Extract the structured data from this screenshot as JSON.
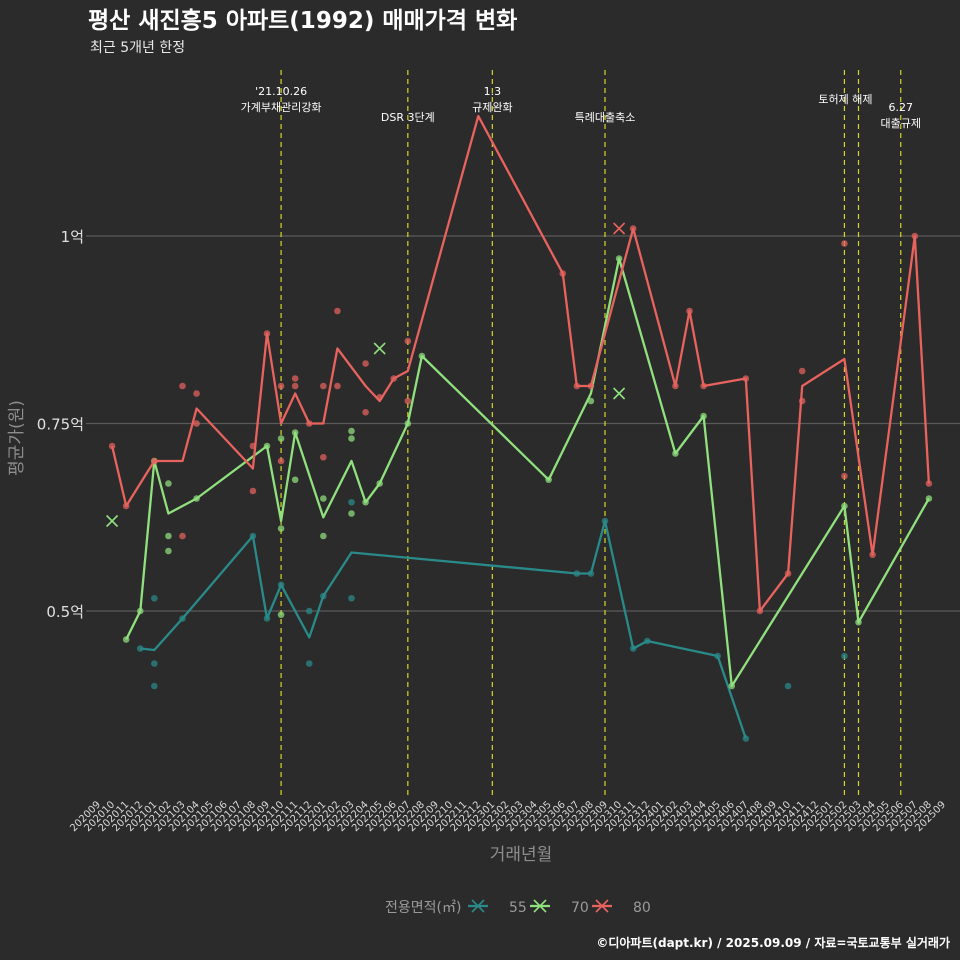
{
  "chart_data": {
    "type": "line",
    "title": "평산 새진흥5 아파트(1992) 매매가격 변화",
    "subtitle": "최근 5개년 한정",
    "xlabel": "거래년월",
    "ylabel": "평균가(원)",
    "caption": "©디아파트(dapt.kr) / 2025.09.09 / 자료=국토교통부 실거래가",
    "ylim": [
      0.3,
      1.17
    ],
    "yticks": [
      {
        "value": 0.5,
        "label": "0.5억"
      },
      {
        "value": 0.75,
        "label": "0.75억"
      },
      {
        "value": 1.0,
        "label": "1억"
      }
    ],
    "x_categories": [
      "202009",
      "202010",
      "202011",
      "202012",
      "202101",
      "202102",
      "202103",
      "202104",
      "202105",
      "202106",
      "202107",
      "202108",
      "202109",
      "202110",
      "202111",
      "202112",
      "202201",
      "202202",
      "202203",
      "202204",
      "202205",
      "202206",
      "202207",
      "202208",
      "202209",
      "202210",
      "202211",
      "202212",
      "202301",
      "202302",
      "202303",
      "202304",
      "202305",
      "202306",
      "202307",
      "202308",
      "202309",
      "202310",
      "202311",
      "202312",
      "202401",
      "202402",
      "202403",
      "202404",
      "202405",
      "202406",
      "202407",
      "202408",
      "202409",
      "202410",
      "202411",
      "202412",
      "202501",
      "202502",
      "202503",
      "202504",
      "202505",
      "202506",
      "202507",
      "202508",
      "202509"
    ],
    "legend": {
      "title": "전용면적(㎡)",
      "position": "bottom"
    },
    "series": [
      {
        "name": "55",
        "color": "#2a8a8a",
        "line": [
          [
            "202012",
            0.45
          ],
          [
            "202101",
            0.448
          ],
          [
            "202103",
            0.49
          ],
          [
            "202108",
            0.6
          ],
          [
            "202109",
            0.49
          ],
          [
            "202110",
            0.535
          ],
          [
            "202112",
            0.465
          ],
          [
            "202201",
            0.52
          ],
          [
            "202203",
            0.578
          ],
          [
            "202307",
            0.55
          ],
          [
            "202308",
            0.55
          ],
          [
            "202309",
            0.62
          ],
          [
            "202311",
            0.45
          ],
          [
            "202312",
            0.46
          ],
          [
            "202405",
            0.44
          ],
          [
            "202407",
            0.33
          ]
        ],
        "points": [
          [
            "202012",
            0.45
          ],
          [
            "202101",
            0.517
          ],
          [
            "202101",
            0.43
          ],
          [
            "202101",
            0.4
          ],
          [
            "202103",
            0.49
          ],
          [
            "202108",
            0.6
          ],
          [
            "202109",
            0.49
          ],
          [
            "202110",
            0.535
          ],
          [
            "202112",
            0.5
          ],
          [
            "202112",
            0.43
          ],
          [
            "202201",
            0.52
          ],
          [
            "202203",
            0.645
          ],
          [
            "202203",
            0.517
          ],
          [
            "202307",
            0.55
          ],
          [
            "202308",
            0.55
          ],
          [
            "202309",
            0.62
          ],
          [
            "202311",
            0.45
          ],
          [
            "202312",
            0.46
          ],
          [
            "202405",
            0.44
          ],
          [
            "202407",
            0.33
          ],
          [
            "202410",
            0.4
          ],
          [
            "202502",
            0.44
          ]
        ],
        "cancelled": []
      },
      {
        "name": "70",
        "color": "#90e07e",
        "line": [
          [
            "202011",
            0.462
          ],
          [
            "202012",
            0.5
          ],
          [
            "202101",
            0.7
          ],
          [
            "202102",
            0.63
          ],
          [
            "202104",
            0.65
          ],
          [
            "202109",
            0.72
          ],
          [
            "202110",
            0.62
          ],
          [
            "202111",
            0.738
          ],
          [
            "202201",
            0.625
          ],
          [
            "202203",
            0.7
          ],
          [
            "202204",
            0.645
          ],
          [
            "202205",
            0.67
          ],
          [
            "202207",
            0.75
          ],
          [
            "202208",
            0.84
          ],
          [
            "202305",
            0.675
          ],
          [
            "202308",
            0.79
          ],
          [
            "202310",
            0.97
          ],
          [
            "202402",
            0.71
          ],
          [
            "202404",
            0.76
          ],
          [
            "202406",
            0.4
          ],
          [
            "202502",
            0.64
          ],
          [
            "202503",
            0.485
          ],
          [
            "202508",
            0.65
          ]
        ],
        "points": [
          [
            "202011",
            0.462
          ],
          [
            "202012",
            0.5
          ],
          [
            "202101",
            0.7
          ],
          [
            "202102",
            0.67
          ],
          [
            "202102",
            0.6
          ],
          [
            "202102",
            0.58
          ],
          [
            "202104",
            0.65
          ],
          [
            "202109",
            0.72
          ],
          [
            "202110",
            0.73
          ],
          [
            "202110",
            0.61
          ],
          [
            "202110",
            0.495
          ],
          [
            "202111",
            0.738
          ],
          [
            "202111",
            0.675
          ],
          [
            "202201",
            0.65
          ],
          [
            "202201",
            0.6
          ],
          [
            "202203",
            0.74
          ],
          [
            "202203",
            0.73
          ],
          [
            "202203",
            0.63
          ],
          [
            "202204",
            0.645
          ],
          [
            "202205",
            0.67
          ],
          [
            "202207",
            0.75
          ],
          [
            "202208",
            0.84
          ],
          [
            "202305",
            0.675
          ],
          [
            "202308",
            0.78
          ],
          [
            "202310",
            0.97
          ],
          [
            "202402",
            0.71
          ],
          [
            "202404",
            0.76
          ],
          [
            "202406",
            0.4
          ],
          [
            "202502",
            0.64
          ],
          [
            "202503",
            0.485
          ],
          [
            "202508",
            0.65
          ]
        ],
        "cancelled": [
          [
            "202010",
            0.62
          ],
          [
            "202205",
            0.85
          ],
          [
            "202310",
            0.79
          ]
        ]
      },
      {
        "name": "80",
        "color": "#e8625e",
        "line": [
          [
            "202010",
            0.72
          ],
          [
            "202011",
            0.64
          ],
          [
            "202101",
            0.7
          ],
          [
            "202103",
            0.7
          ],
          [
            "202104",
            0.77
          ],
          [
            "202108",
            0.69
          ],
          [
            "202109",
            0.87
          ],
          [
            "202110",
            0.75
          ],
          [
            "202111",
            0.79
          ],
          [
            "202112",
            0.75
          ],
          [
            "202201",
            0.75
          ],
          [
            "202202",
            0.85
          ],
          [
            "202204",
            0.8
          ],
          [
            "202205",
            0.78
          ],
          [
            "202206",
            0.81
          ],
          [
            "202207",
            0.82
          ],
          [
            "202212",
            1.16
          ],
          [
            "202306",
            0.95
          ],
          [
            "202307",
            0.8
          ],
          [
            "202308",
            0.8
          ],
          [
            "202311",
            1.01
          ],
          [
            "202402",
            0.8
          ],
          [
            "202403",
            0.9
          ],
          [
            "202404",
            0.8
          ],
          [
            "202407",
            0.81
          ],
          [
            "202408",
            0.5
          ],
          [
            "202410",
            0.55
          ],
          [
            "202411",
            0.8
          ],
          [
            "202502",
            0.836
          ],
          [
            "202504",
            0.575
          ],
          [
            "202507",
            1.0
          ],
          [
            "202508",
            0.67
          ]
        ],
        "points": [
          [
            "202010",
            0.72
          ],
          [
            "202011",
            0.64
          ],
          [
            "202101",
            0.7
          ],
          [
            "202103",
            0.8
          ],
          [
            "202103",
            0.6
          ],
          [
            "202104",
            0.79
          ],
          [
            "202104",
            0.75
          ],
          [
            "202108",
            0.72
          ],
          [
            "202108",
            0.66
          ],
          [
            "202109",
            0.87
          ],
          [
            "202110",
            0.8
          ],
          [
            "202110",
            0.7
          ],
          [
            "202111",
            0.81
          ],
          [
            "202111",
            0.8
          ],
          [
            "202112",
            0.75
          ],
          [
            "202201",
            0.8
          ],
          [
            "202201",
            0.705
          ],
          [
            "202202",
            0.9
          ],
          [
            "202202",
            0.8
          ],
          [
            "202204",
            0.83
          ],
          [
            "202204",
            0.765
          ],
          [
            "202205",
            0.785
          ],
          [
            "202206",
            0.81
          ],
          [
            "202207",
            0.86
          ],
          [
            "202207",
            0.78
          ],
          [
            "202306",
            0.95
          ],
          [
            "202307",
            0.8
          ],
          [
            "202308",
            0.8
          ],
          [
            "202311",
            1.01
          ],
          [
            "202402",
            0.8
          ],
          [
            "202403",
            0.9
          ],
          [
            "202404",
            0.8
          ],
          [
            "202407",
            0.81
          ],
          [
            "202408",
            0.5
          ],
          [
            "202410",
            0.55
          ],
          [
            "202411",
            0.82
          ],
          [
            "202411",
            0.78
          ],
          [
            "202502",
            0.99
          ],
          [
            "202502",
            0.68
          ],
          [
            "202504",
            0.575
          ],
          [
            "202507",
            1.0
          ],
          [
            "202508",
            0.67
          ]
        ],
        "cancelled": [
          [
            "202310",
            1.01
          ]
        ]
      }
    ],
    "events": [
      {
        "x": "202110",
        "lines": [
          "'21.10.26",
          "가계부채관리강화"
        ]
      },
      {
        "x": "202207",
        "lines": [
          "DSR 3단계"
        ]
      },
      {
        "x": "202301",
        "lines": [
          "1.3",
          "규제완화"
        ]
      },
      {
        "x": "202309",
        "lines": [
          "특례대출축소"
        ]
      },
      {
        "x": "202502",
        "lines": [
          "토허제 해제"
        ]
      },
      {
        "x": "202503",
        "lines": []
      },
      {
        "x": "202506",
        "lines": [
          "6.27",
          "대출규제"
        ]
      }
    ]
  }
}
